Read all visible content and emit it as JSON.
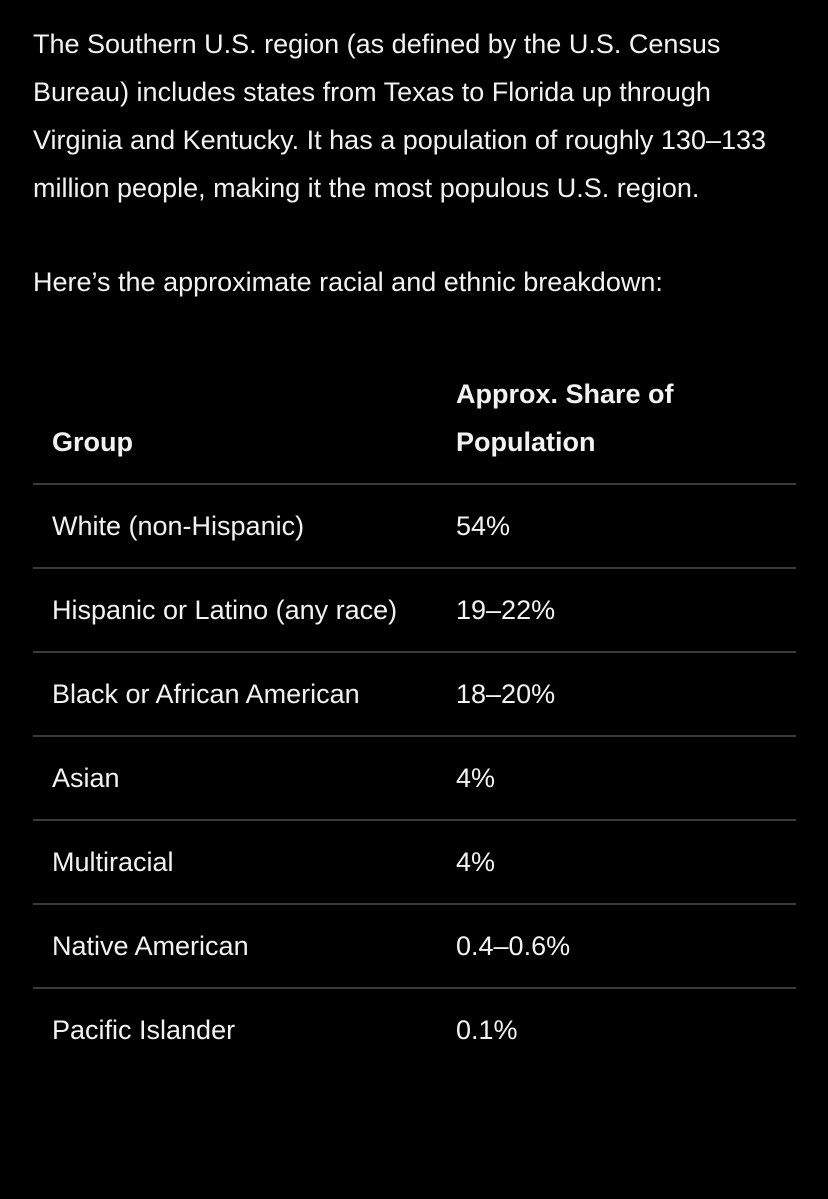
{
  "intro": {
    "paragraphs": [
      "The Southern U.S. region (as defined by the U.S. Census Bureau) includes states from Texas to Florida up through Virginia and Kentucky. It has a population of roughly 130–133 million people, making it the most populous U.S. region.",
      "Here’s the approximate racial and ethnic breakdown:"
    ]
  },
  "table": {
    "header": [
      "Group",
      "Approx. Share of Population"
    ],
    "rows": [
      [
        "White (non-Hispanic)",
        "54%"
      ],
      [
        "Hispanic or Latino (any race)",
        "19–22%"
      ],
      [
        "Black or African American",
        "18–20%"
      ],
      [
        "Asian",
        "4%"
      ],
      [
        "Multiracial",
        "4%"
      ],
      [
        "Native American",
        "0.4–0.6%"
      ],
      [
        "Pacific Islander",
        "0.1%"
      ]
    ]
  }
}
